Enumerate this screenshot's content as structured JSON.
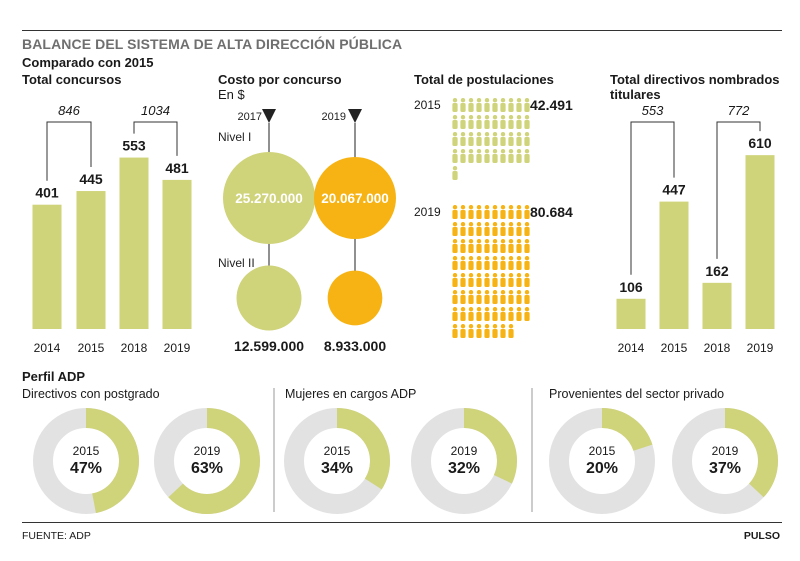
{
  "header": {
    "title": "BALANCE DEL SISTEMA DE ALTA DIRECCIÓN PÚBLICA",
    "subtitle": "Comparado con 2015"
  },
  "footer": {
    "source": "FUENTE: ADP",
    "brand": "PULSO"
  },
  "profile": {
    "title": "Perfil ADP"
  },
  "colors": {
    "green": "#cfd37a",
    "orange": "#f6b313",
    "gray": "#e2e2e2",
    "text": "#1a1a1a"
  },
  "chart_data": [
    {
      "id": "concursos",
      "type": "bar",
      "title": "Total concursos",
      "categories": [
        "2014",
        "2015",
        "2018",
        "2019"
      ],
      "values": [
        401,
        445,
        553,
        481
      ],
      "totals": [
        {
          "label": "846",
          "categories": [
            "2014",
            "2015"
          ]
        },
        {
          "label": "1034",
          "categories": [
            "2018",
            "2019"
          ]
        }
      ]
    },
    {
      "id": "costo",
      "type": "bubble",
      "title": "Costo por concurso",
      "unit": "En $",
      "years": [
        "2017",
        "2019"
      ],
      "levels": [
        "Nivel I",
        "Nivel II"
      ],
      "series": [
        {
          "name": "Nivel I",
          "values": [
            25270000,
            20067000
          ],
          "labels": [
            "25.270.000",
            "20.067.000"
          ]
        },
        {
          "name": "Nivel II",
          "values": [
            12599000,
            8933000
          ],
          "labels": [
            "12.599.000",
            "8.933.000"
          ]
        }
      ]
    },
    {
      "id": "postulaciones",
      "type": "pictogram",
      "title": "Total de postulaciones",
      "categories": [
        "2015",
        "2019"
      ],
      "values": [
        42491,
        80684
      ],
      "labels": [
        "42.491",
        "80.684"
      ]
    },
    {
      "id": "directivos",
      "type": "bar",
      "title": "Total directivos nombrados titulares",
      "categories": [
        "2014",
        "2015",
        "2018",
        "2019"
      ],
      "values": [
        106,
        447,
        162,
        610
      ],
      "totals": [
        {
          "label": "553",
          "categories": [
            "2014",
            "2015"
          ]
        },
        {
          "label": "772",
          "categories": [
            "2018",
            "2019"
          ]
        }
      ]
    },
    {
      "id": "postgrado",
      "type": "pie",
      "title": "Directivos con postgrado",
      "items": [
        {
          "year": "2015",
          "percent": 47,
          "label": "47%"
        },
        {
          "year": "2019",
          "percent": 63,
          "label": "63%"
        }
      ]
    },
    {
      "id": "mujeres",
      "type": "pie",
      "title": "Mujeres en cargos ADP",
      "items": [
        {
          "year": "2015",
          "percent": 34,
          "label": "34%"
        },
        {
          "year": "2019",
          "percent": 32,
          "label": "32%"
        }
      ]
    },
    {
      "id": "privado",
      "type": "pie",
      "title": "Provenientes del sector privado",
      "items": [
        {
          "year": "2015",
          "percent": 20,
          "label": "20%"
        },
        {
          "year": "2019",
          "percent": 37,
          "label": "37%"
        }
      ]
    }
  ]
}
